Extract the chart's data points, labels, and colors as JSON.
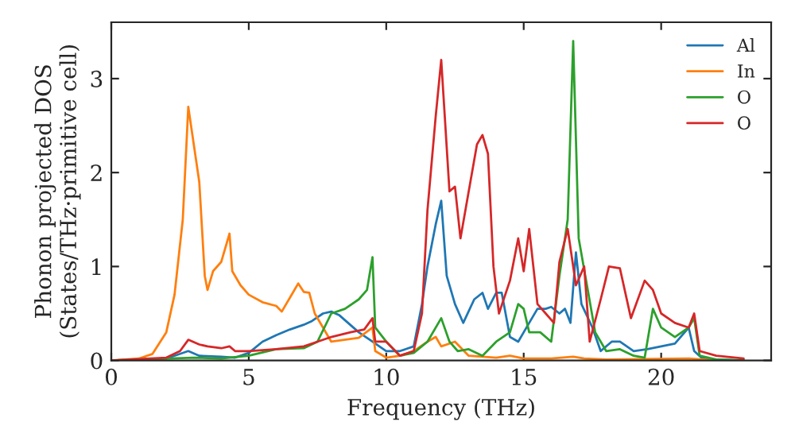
{
  "chart_data": {
    "type": "line",
    "xlabel": "Frequency (THz)",
    "ylabel": "Phonon projected DOS\n(States/THz·primitive cell)",
    "xlim": [
      0,
      24
    ],
    "ylim": [
      0,
      3.6
    ],
    "xticks": [
      0,
      5,
      10,
      15,
      20
    ],
    "yticks": [
      0,
      1,
      2,
      3
    ],
    "legend": "top right",
    "grid": false,
    "line_style": "solid",
    "series": [
      {
        "name": "Al",
        "color": "#1f77b4",
        "x": [
          0,
          2,
          2.8,
          3.2,
          4,
          4.5,
          5,
          5.5,
          6,
          6.5,
          7,
          7.3,
          7.7,
          8,
          8.3,
          9,
          9.5,
          10,
          10.5,
          11,
          11.3,
          11.5,
          11.8,
          12,
          12.2,
          12.5,
          12.8,
          13.2,
          13.5,
          13.7,
          14,
          14.2,
          14.5,
          14.8,
          15,
          15.5,
          15.8,
          16,
          16.3,
          16.5,
          16.7,
          16.9,
          17.1,
          17.5,
          17.8,
          18.2,
          18.5,
          19,
          19.5,
          20,
          20.5,
          21,
          21.2,
          21.5,
          22,
          23
        ],
        "values": [
          0,
          0.02,
          0.1,
          0.05,
          0.04,
          0.03,
          0.08,
          0.2,
          0.27,
          0.33,
          0.38,
          0.42,
          0.5,
          0.52,
          0.48,
          0.3,
          0.2,
          0.1,
          0.1,
          0.15,
          0.6,
          1.0,
          1.45,
          1.7,
          0.9,
          0.6,
          0.4,
          0.65,
          0.72,
          0.55,
          0.72,
          0.72,
          0.25,
          0.2,
          0.3,
          0.55,
          0.55,
          0.57,
          0.5,
          0.55,
          0.4,
          1.15,
          0.6,
          0.35,
          0.1,
          0.2,
          0.2,
          0.1,
          0.12,
          0.15,
          0.18,
          0.35,
          0.1,
          0.02,
          0.01,
          0
        ]
      },
      {
        "name": "In",
        "color": "#ff7f0e",
        "x": [
          0,
          1,
          1.5,
          2,
          2.3,
          2.6,
          2.8,
          3,
          3.2,
          3.4,
          3.5,
          3.7,
          4,
          4.3,
          4.4,
          4.7,
          5,
          5.5,
          6,
          6.2,
          6.6,
          6.8,
          7,
          7.2,
          7.4,
          7.7,
          8,
          9,
          9.5,
          9.6,
          10,
          10.5,
          11,
          11.5,
          11.8,
          12,
          12.5,
          13,
          14,
          14.5,
          15,
          16,
          16.8,
          17.2,
          18,
          21,
          22,
          23
        ],
        "values": [
          0,
          0.02,
          0.07,
          0.3,
          0.7,
          1.5,
          2.7,
          2.3,
          1.9,
          0.9,
          0.75,
          0.95,
          1.05,
          1.35,
          0.95,
          0.8,
          0.7,
          0.62,
          0.58,
          0.52,
          0.72,
          0.82,
          0.73,
          0.72,
          0.5,
          0.35,
          0.2,
          0.24,
          0.35,
          0.1,
          0.03,
          0.05,
          0.1,
          0.2,
          0.25,
          0.15,
          0.2,
          0.05,
          0.03,
          0.05,
          0.02,
          0.02,
          0.04,
          0.02,
          0.01,
          0.02,
          0,
          0
        ]
      },
      {
        "name": "O",
        "color": "#2ca02c",
        "x": [
          0,
          3,
          4,
          5,
          6,
          7,
          7.5,
          8,
          8.5,
          9,
          9.3,
          9.5,
          9.6,
          10,
          10.5,
          11,
          11.5,
          12,
          12.3,
          12.6,
          13,
          13.5,
          14,
          14.5,
          14.8,
          15,
          15.2,
          15.6,
          16,
          16.3,
          16.6,
          16.8,
          17,
          17.3,
          17.6,
          18,
          18.5,
          19,
          19.4,
          19.7,
          20,
          20.5,
          21,
          21.2,
          21.4,
          22,
          23
        ],
        "values": [
          0,
          0.03,
          0.02,
          0.05,
          0.12,
          0.13,
          0.2,
          0.5,
          0.55,
          0.65,
          0.75,
          1.1,
          0.35,
          0.2,
          0.05,
          0.08,
          0.2,
          0.45,
          0.2,
          0.1,
          0.12,
          0.05,
          0.2,
          0.3,
          0.6,
          0.55,
          0.3,
          0.3,
          0.2,
          0.9,
          1.5,
          3.4,
          1.3,
          0.8,
          0.3,
          0.1,
          0.12,
          0.05,
          0.03,
          0.55,
          0.35,
          0.25,
          0.35,
          0.45,
          0.05,
          0.01,
          0
        ]
      },
      {
        "name": "O",
        "color": "#d62728",
        "x": [
          0,
          2,
          2.5,
          2.8,
          3.2,
          3.5,
          4,
          4.3,
          4.5,
          5,
          6,
          7,
          7.5,
          8,
          8.7,
          9.2,
          9.5,
          9.6,
          10,
          10.5,
          11,
          11.3,
          11.5,
          11.8,
          12,
          12.3,
          12.5,
          12.7,
          13,
          13.3,
          13.5,
          13.7,
          13.9,
          14.1,
          14.5,
          14.8,
          15,
          15.2,
          15.5,
          15.8,
          16.1,
          16.3,
          16.6,
          16.9,
          17.2,
          17.4,
          17.8,
          18.1,
          18.5,
          18.9,
          19.4,
          19.7,
          20,
          20.5,
          21,
          21.2,
          21.4,
          22,
          23
        ],
        "values": [
          0,
          0.03,
          0.1,
          0.22,
          0.17,
          0.15,
          0.13,
          0.15,
          0.1,
          0.1,
          0.12,
          0.15,
          0.2,
          0.25,
          0.3,
          0.33,
          0.45,
          0.2,
          0.2,
          0.05,
          0.1,
          0.5,
          1.6,
          2.6,
          3.2,
          1.8,
          1.85,
          1.3,
          1.8,
          2.3,
          2.4,
          2.2,
          1.0,
          0.5,
          0.85,
          1.3,
          0.95,
          1.4,
          0.6,
          0.5,
          0.4,
          1.05,
          1.4,
          0.8,
          1.0,
          0.2,
          0.65,
          1.0,
          0.98,
          0.45,
          0.85,
          0.75,
          0.5,
          0.4,
          0.35,
          0.5,
          0.1,
          0.05,
          0.02
        ]
      }
    ]
  }
}
